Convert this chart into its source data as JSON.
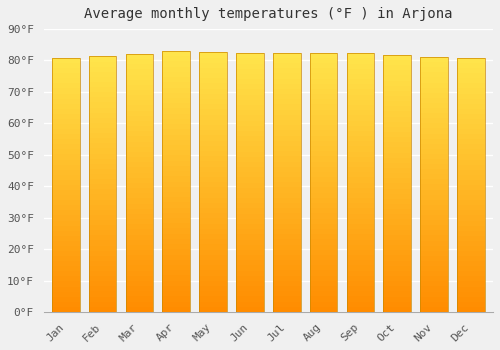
{
  "title": "Average monthly temperatures (°F ) in Arjona",
  "months": [
    "Jan",
    "Feb",
    "Mar",
    "Apr",
    "May",
    "Jun",
    "Jul",
    "Aug",
    "Sep",
    "Oct",
    "Nov",
    "Dec"
  ],
  "values": [
    80.8,
    81.3,
    82.1,
    83.0,
    82.6,
    82.3,
    82.5,
    82.5,
    82.3,
    81.8,
    81.1,
    80.8
  ],
  "bar_color": "#FFA500",
  "bar_edge_color": "#CC8800",
  "background_color": "#f0f0f0",
  "plot_bg_color": "#f0f0f0",
  "ylim": [
    0,
    90
  ],
  "ytick_step": 10,
  "title_fontsize": 10,
  "tick_fontsize": 8,
  "font_family": "monospace",
  "grid_color": "#ffffff",
  "bar_width": 0.75
}
